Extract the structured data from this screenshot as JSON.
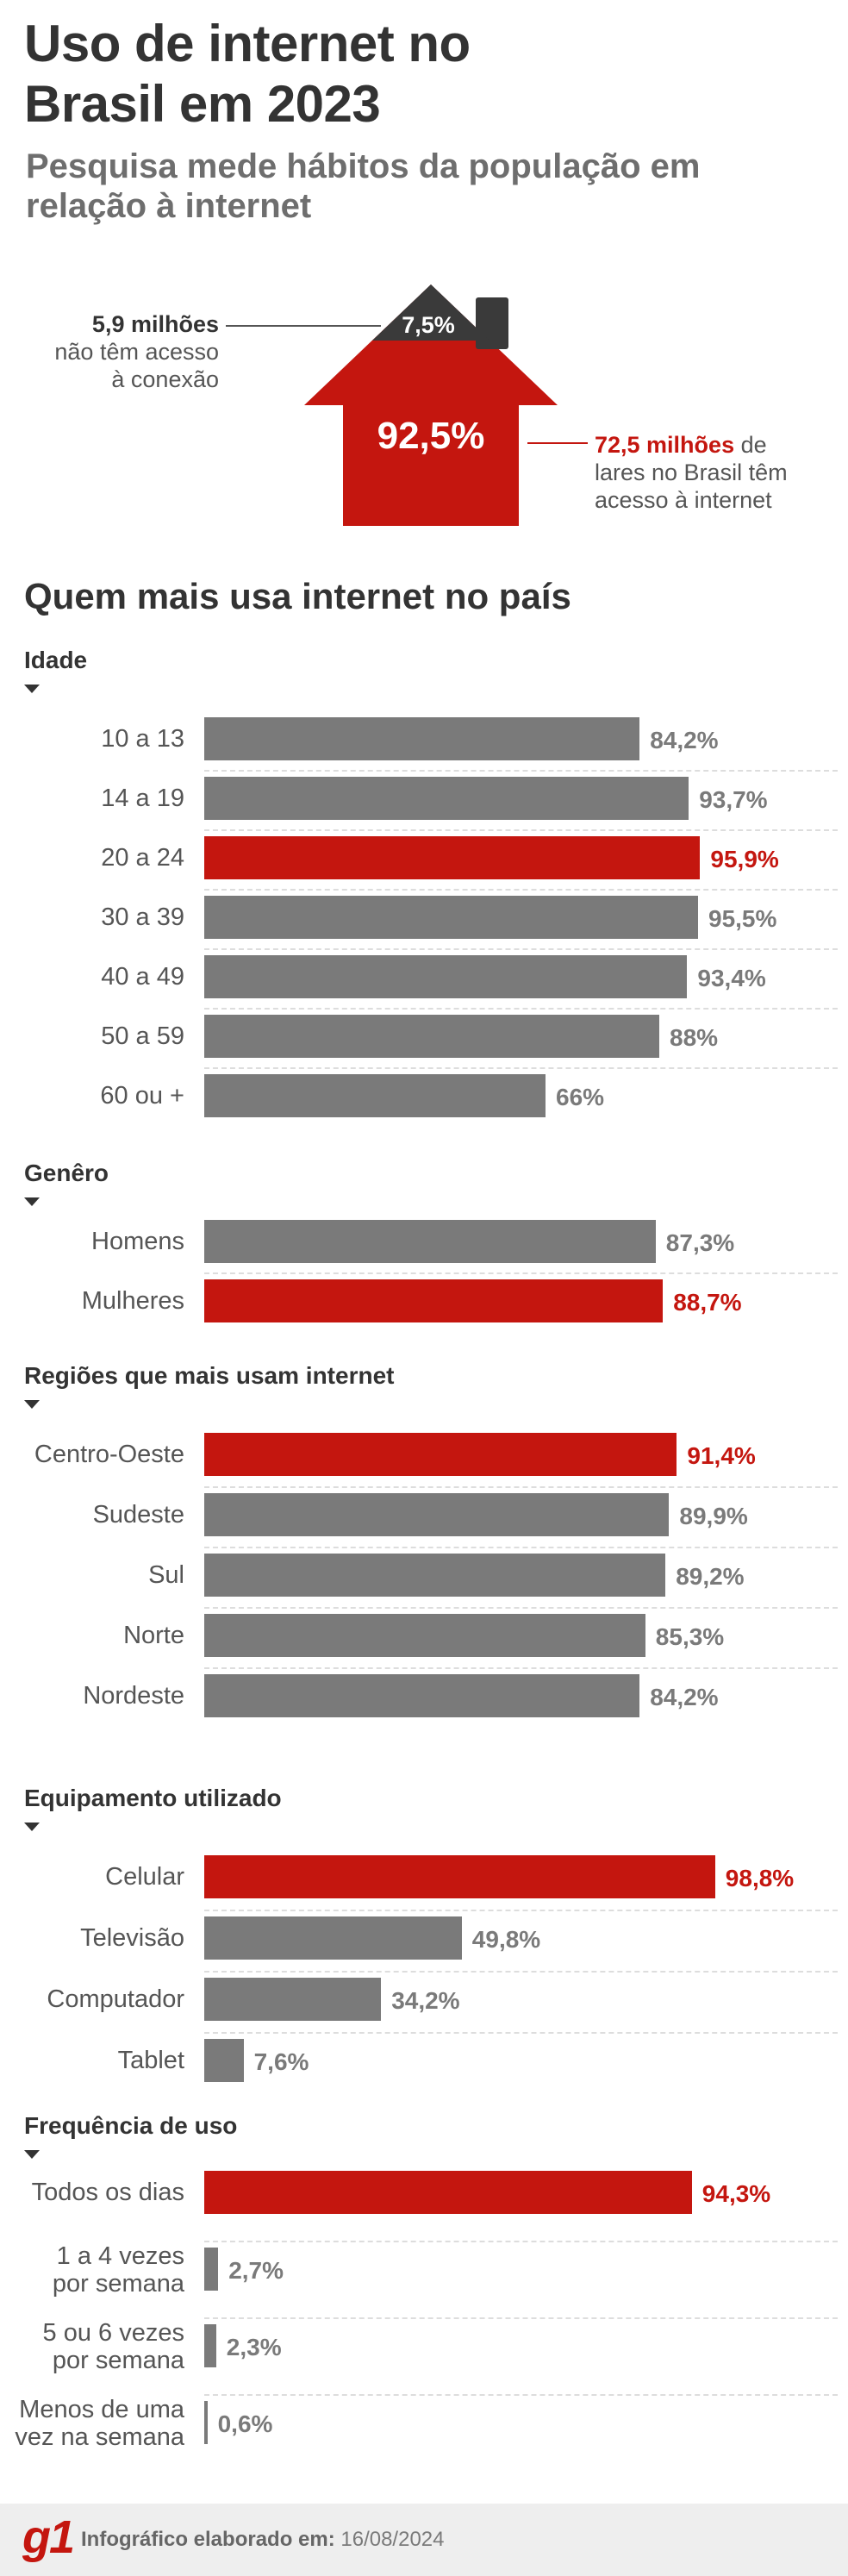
{
  "title_line1": "Uso de internet no",
  "title_line2": "Brasil em 2023",
  "subtitle_line1": "Pesquisa mede hábitos da população em",
  "subtitle_line2": "relação à internet",
  "house": {
    "with_access_pct": "92,5%",
    "without_access_pct": "7,5%",
    "left_note_bold": "5,9 milhões",
    "left_note_line2": "não têm acesso",
    "left_note_line3": "à conexão",
    "right_note_bold": "72,5 milhões",
    "right_note_rest": "de",
    "right_note_line2": "lares no Brasil têm",
    "right_note_line3": "acesso à internet"
  },
  "section_title": "Quem mais usa internet no país",
  "colors": {
    "highlight": "#c4160f",
    "bar": "#7a7a7a",
    "dark": "#333333"
  },
  "chart_data": [
    {
      "type": "bar",
      "title": "Idade",
      "categories": [
        "10 a 13",
        "14 a 19",
        "20 a 24",
        "30 a 39",
        "40 a 49",
        "50 a 59",
        "60 ou +"
      ],
      "values": [
        84.2,
        93.7,
        95.9,
        95.5,
        93.4,
        88,
        66
      ],
      "labels": [
        "84,2%",
        "93,7%",
        "95,9%",
        "95,5%",
        "93,4%",
        "88%",
        "66%"
      ],
      "highlight": 2,
      "ylim": [
        0,
        100
      ]
    },
    {
      "type": "bar",
      "title": "Genêro",
      "categories": [
        "Homens",
        "Mulheres"
      ],
      "values": [
        87.3,
        88.7
      ],
      "labels": [
        "87,3%",
        "88,7%"
      ],
      "highlight": 1,
      "ylim": [
        0,
        100
      ]
    },
    {
      "type": "bar",
      "title": "Regiões que mais usam internet",
      "categories": [
        "Centro-Oeste",
        "Sudeste",
        "Sul",
        "Norte",
        "Nordeste"
      ],
      "values": [
        91.4,
        89.9,
        89.2,
        85.3,
        84.2
      ],
      "labels": [
        "91,4%",
        "89,9%",
        "89,2%",
        "85,3%",
        "84,2%"
      ],
      "highlight": 0,
      "ylim": [
        0,
        100
      ]
    },
    {
      "type": "bar",
      "title": "Equipamento utilizado",
      "categories": [
        "Celular",
        "Televisão",
        "Computador",
        "Tablet"
      ],
      "values": [
        98.8,
        49.8,
        34.2,
        7.6
      ],
      "labels": [
        "98,8%",
        "49,8%",
        "34,2%",
        "7,6%"
      ],
      "highlight": 0,
      "ylim": [
        0,
        100
      ]
    },
    {
      "type": "bar",
      "title": "Frequência de uso",
      "categories": [
        "Todos os dias",
        "1 a 4 vezes\npor semana",
        "5 ou 6 vezes\npor semana",
        "Menos de uma\nvez na semana"
      ],
      "values": [
        94.3,
        2.7,
        2.3,
        0.6
      ],
      "labels": [
        "94,3%",
        "2,7%",
        "2,3%",
        "0,6%"
      ],
      "highlight": 0,
      "ylim": [
        0,
        100
      ]
    }
  ],
  "footer": {
    "logo": "g1",
    "credit_label": "Infográfico elaborado em:",
    "credit_date": "16/08/2024"
  }
}
